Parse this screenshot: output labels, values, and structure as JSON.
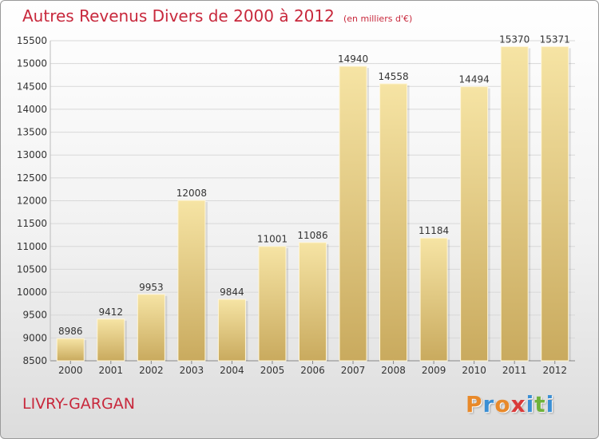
{
  "header": {
    "title": "Autres Revenus Divers de 2000 à 2012",
    "unit": "(en milliers d'€)"
  },
  "footer": {
    "commune": "LIVRY-GARGAN",
    "logo_text": "Proxiti",
    "logo_colors": [
      "#e8892a",
      "#3b8fd4",
      "#e8892a",
      "#d93a3a",
      "#3b8fd4",
      "#6fb23b",
      "#3b8fd4"
    ]
  },
  "colors": {
    "title": "#c8283c",
    "bar_light": "#f6e4a4",
    "bar_dark": "#c9aa5e",
    "grid": "#d8d8d8"
  },
  "chart_data": {
    "type": "bar",
    "title": "Autres Revenus Divers de 2000 à 2012",
    "subtitle": "(en milliers d'€)",
    "xlabel": "",
    "ylabel": "",
    "categories": [
      "2000",
      "2001",
      "2002",
      "2003",
      "2004",
      "2005",
      "2006",
      "2007",
      "2008",
      "2009",
      "2010",
      "2011",
      "2012"
    ],
    "values": [
      8986,
      9412,
      9953,
      12008,
      9844,
      11001,
      11086,
      14940,
      14558,
      11184,
      14494,
      15370,
      15371
    ],
    "ylim": [
      8500,
      15500
    ],
    "yticks": [
      8500,
      9000,
      9500,
      10000,
      10500,
      11000,
      11500,
      12000,
      12500,
      13000,
      13500,
      14000,
      14500,
      15000,
      15500
    ],
    "grid": true,
    "legend": "none"
  }
}
